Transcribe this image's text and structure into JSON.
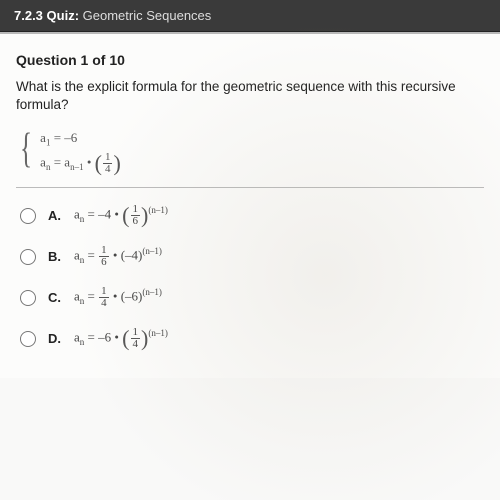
{
  "header": {
    "label": "7.2.3 Quiz:",
    "title": "Geometric Sequences"
  },
  "question": {
    "number": "Question 1 of 10",
    "text": "What is the explicit formula for the geometric sequence with this recursive formula?"
  },
  "recursive": {
    "line1_lhs": "a",
    "line1_sub": "1",
    "line1_rhs": " = –6",
    "line2_a": "a",
    "line2_sub_n": "n",
    "line2_eq": " = ",
    "line2_a2": "a",
    "line2_sub_nm1": "n–1",
    "line2_dot": " • ",
    "line2_frac_n": "1",
    "line2_frac_d": "4"
  },
  "choices": [
    {
      "letter": "A.",
      "lhs": "a",
      "lhs_sub": "n",
      "eq": " = –4 • ",
      "style": "frac-base",
      "frac_n": "1",
      "frac_d": "6",
      "exp": "(n–1)"
    },
    {
      "letter": "B.",
      "lhs": "a",
      "lhs_sub": "n",
      "eq": " = ",
      "style": "frac-coef",
      "coef_n": "1",
      "coef_d": "6",
      "dot": " • ",
      "base": "(–4)",
      "exp": "(n–1)"
    },
    {
      "letter": "C.",
      "lhs": "a",
      "lhs_sub": "n",
      "eq": " = ",
      "style": "frac-coef",
      "coef_n": "1",
      "coef_d": "4",
      "dot": " • ",
      "base": "(–6)",
      "exp": "(n–1)"
    },
    {
      "letter": "D.",
      "lhs": "a",
      "lhs_sub": "n",
      "eq": " = –6 • ",
      "style": "frac-base",
      "frac_n": "1",
      "frac_d": "4",
      "exp": "(n–1)"
    }
  ]
}
